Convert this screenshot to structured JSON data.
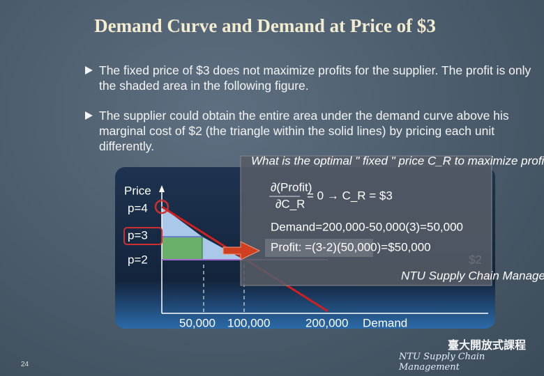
{
  "header": {
    "title": "Demand Curve and Demand at Price of $3"
  },
  "bullets": [
    "The fixed price of $3 does not maximize profits for the supplier. The profit is only the shaded area in the following figure.",
    "The supplier could obtain the entire area under the demand curve above his marginal cost of $2 (the triangle within the solid lines) by pricing each unit differently."
  ],
  "figure": {
    "y_axis_label": "Price",
    "price_labels": [
      "p=4",
      "p=3",
      "p=2"
    ],
    "cost_label": "$2",
    "x_labels": [
      "50,000",
      "100,000",
      "200,000"
    ],
    "x_axis_label": "Demand"
  },
  "overlay": {
    "question": "What is the optimal \" fixed \" price C_R to maximize profit ?",
    "derivative": "∂(Profit)",
    "derivative_denominator": "∂C_R",
    "result": "= 0 → C_R = $3",
    "demand": "Demand=200,000-50,000(3)=50,000",
    "profit": "Profit: =(3-2)(50,000)=$50,000",
    "footer": "NTU Supply Chain Management"
  },
  "footer": {
    "page": "24",
    "logo": "臺大開放式課程",
    "brand": "NTU Supply Chain Management"
  }
}
